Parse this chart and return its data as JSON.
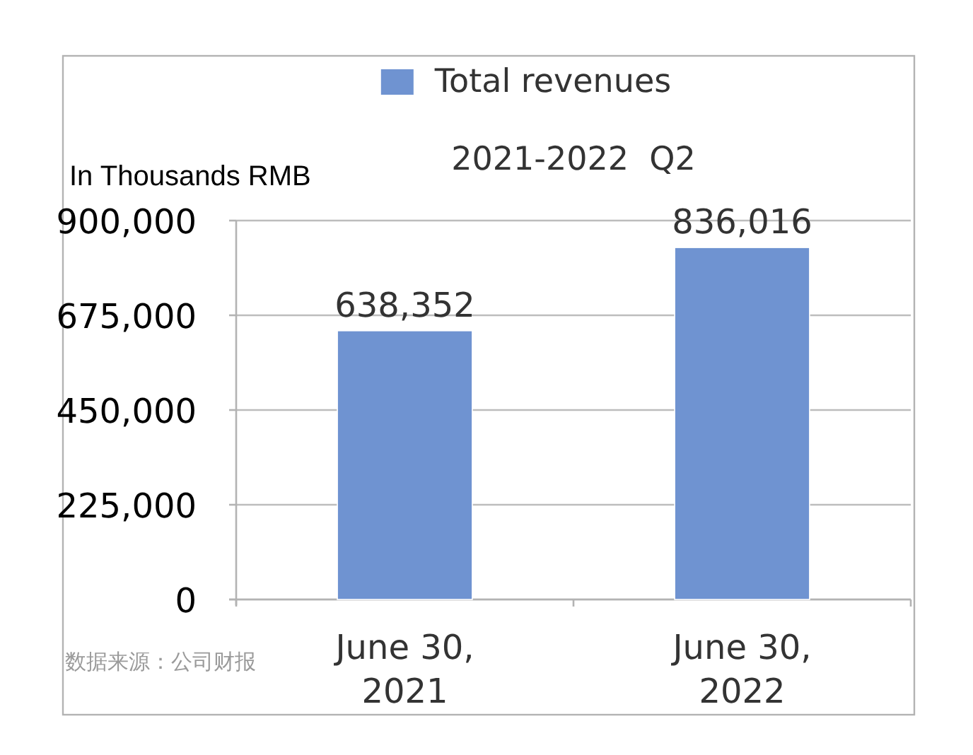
{
  "chart_data": {
    "type": "bar",
    "title": "2021-2022  Q2",
    "ylabel": "In Thousands RMB",
    "categories": [
      "June 30, 2021",
      "June 30, 2022"
    ],
    "series": [
      {
        "name": "Total revenues",
        "color": "#6f93d1",
        "values": [
          638352,
          836016
        ],
        "value_labels": [
          "638,352",
          "836,016"
        ]
      }
    ],
    "ylim": [
      0,
      900000
    ],
    "yticks": [
      0,
      {
        "value": 225000,
        "label": "225,000"
      },
      {
        "value": 450000,
        "label": "450,000"
      },
      {
        "value": 675000,
        "label": "675,000"
      },
      {
        "value": 900000,
        "label": "900,000"
      }
    ],
    "grid": "y",
    "legend": "top",
    "annotations": [
      "数据来源：公司财报"
    ]
  }
}
